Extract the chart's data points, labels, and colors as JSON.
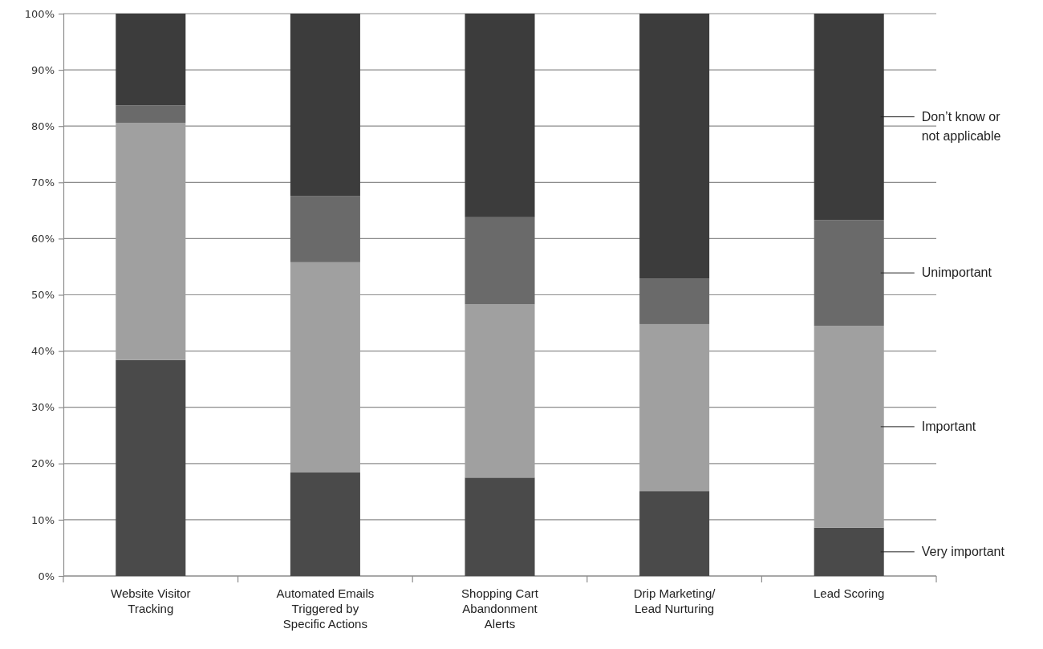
{
  "chart_data": {
    "type": "bar",
    "stacked": true,
    "categories": [
      "Website Visitor Tracking",
      "Automated Emails Triggered by Specific Actions",
      "Shopping Cart Abandonment Alerts",
      "Drip Marketing/ Lead Nurturing",
      "Lead Scoring"
    ],
    "series": [
      {
        "name": "Very important",
        "color": "#4a4a4a",
        "values": [
          38.4,
          18.4,
          17.5,
          15.1,
          8.6
        ]
      },
      {
        "name": "Important",
        "color": "#a0a0a0",
        "values": [
          42.2,
          37.4,
          30.8,
          29.7,
          35.9
        ]
      },
      {
        "name": "Unimportant",
        "color": "#6a6a6a",
        "values": [
          3.1,
          11.8,
          15.5,
          8.1,
          18.8
        ]
      },
      {
        "name": "Don’t know or not applicable",
        "color": "#3c3c3c",
        "values": [
          16.3,
          32.4,
          36.2,
          47.1,
          36.7
        ]
      }
    ],
    "ylim": [
      0,
      100
    ],
    "yticks": [
      {
        "value": 0,
        "label": "0%"
      },
      {
        "value": 10,
        "label": "10%"
      },
      {
        "value": 20,
        "label": "20%"
      },
      {
        "value": 30,
        "label": "30%"
      },
      {
        "value": 40,
        "label": "40%"
      },
      {
        "value": 50,
        "label": "50%"
      },
      {
        "value": 60,
        "label": "60%"
      },
      {
        "value": 70,
        "label": "70%"
      },
      {
        "value": 80,
        "label": "80%"
      },
      {
        "value": 90,
        "label": "90%"
      },
      {
        "value": 100,
        "label": "100%"
      }
    ],
    "grid": "y",
    "legend": "right"
  }
}
